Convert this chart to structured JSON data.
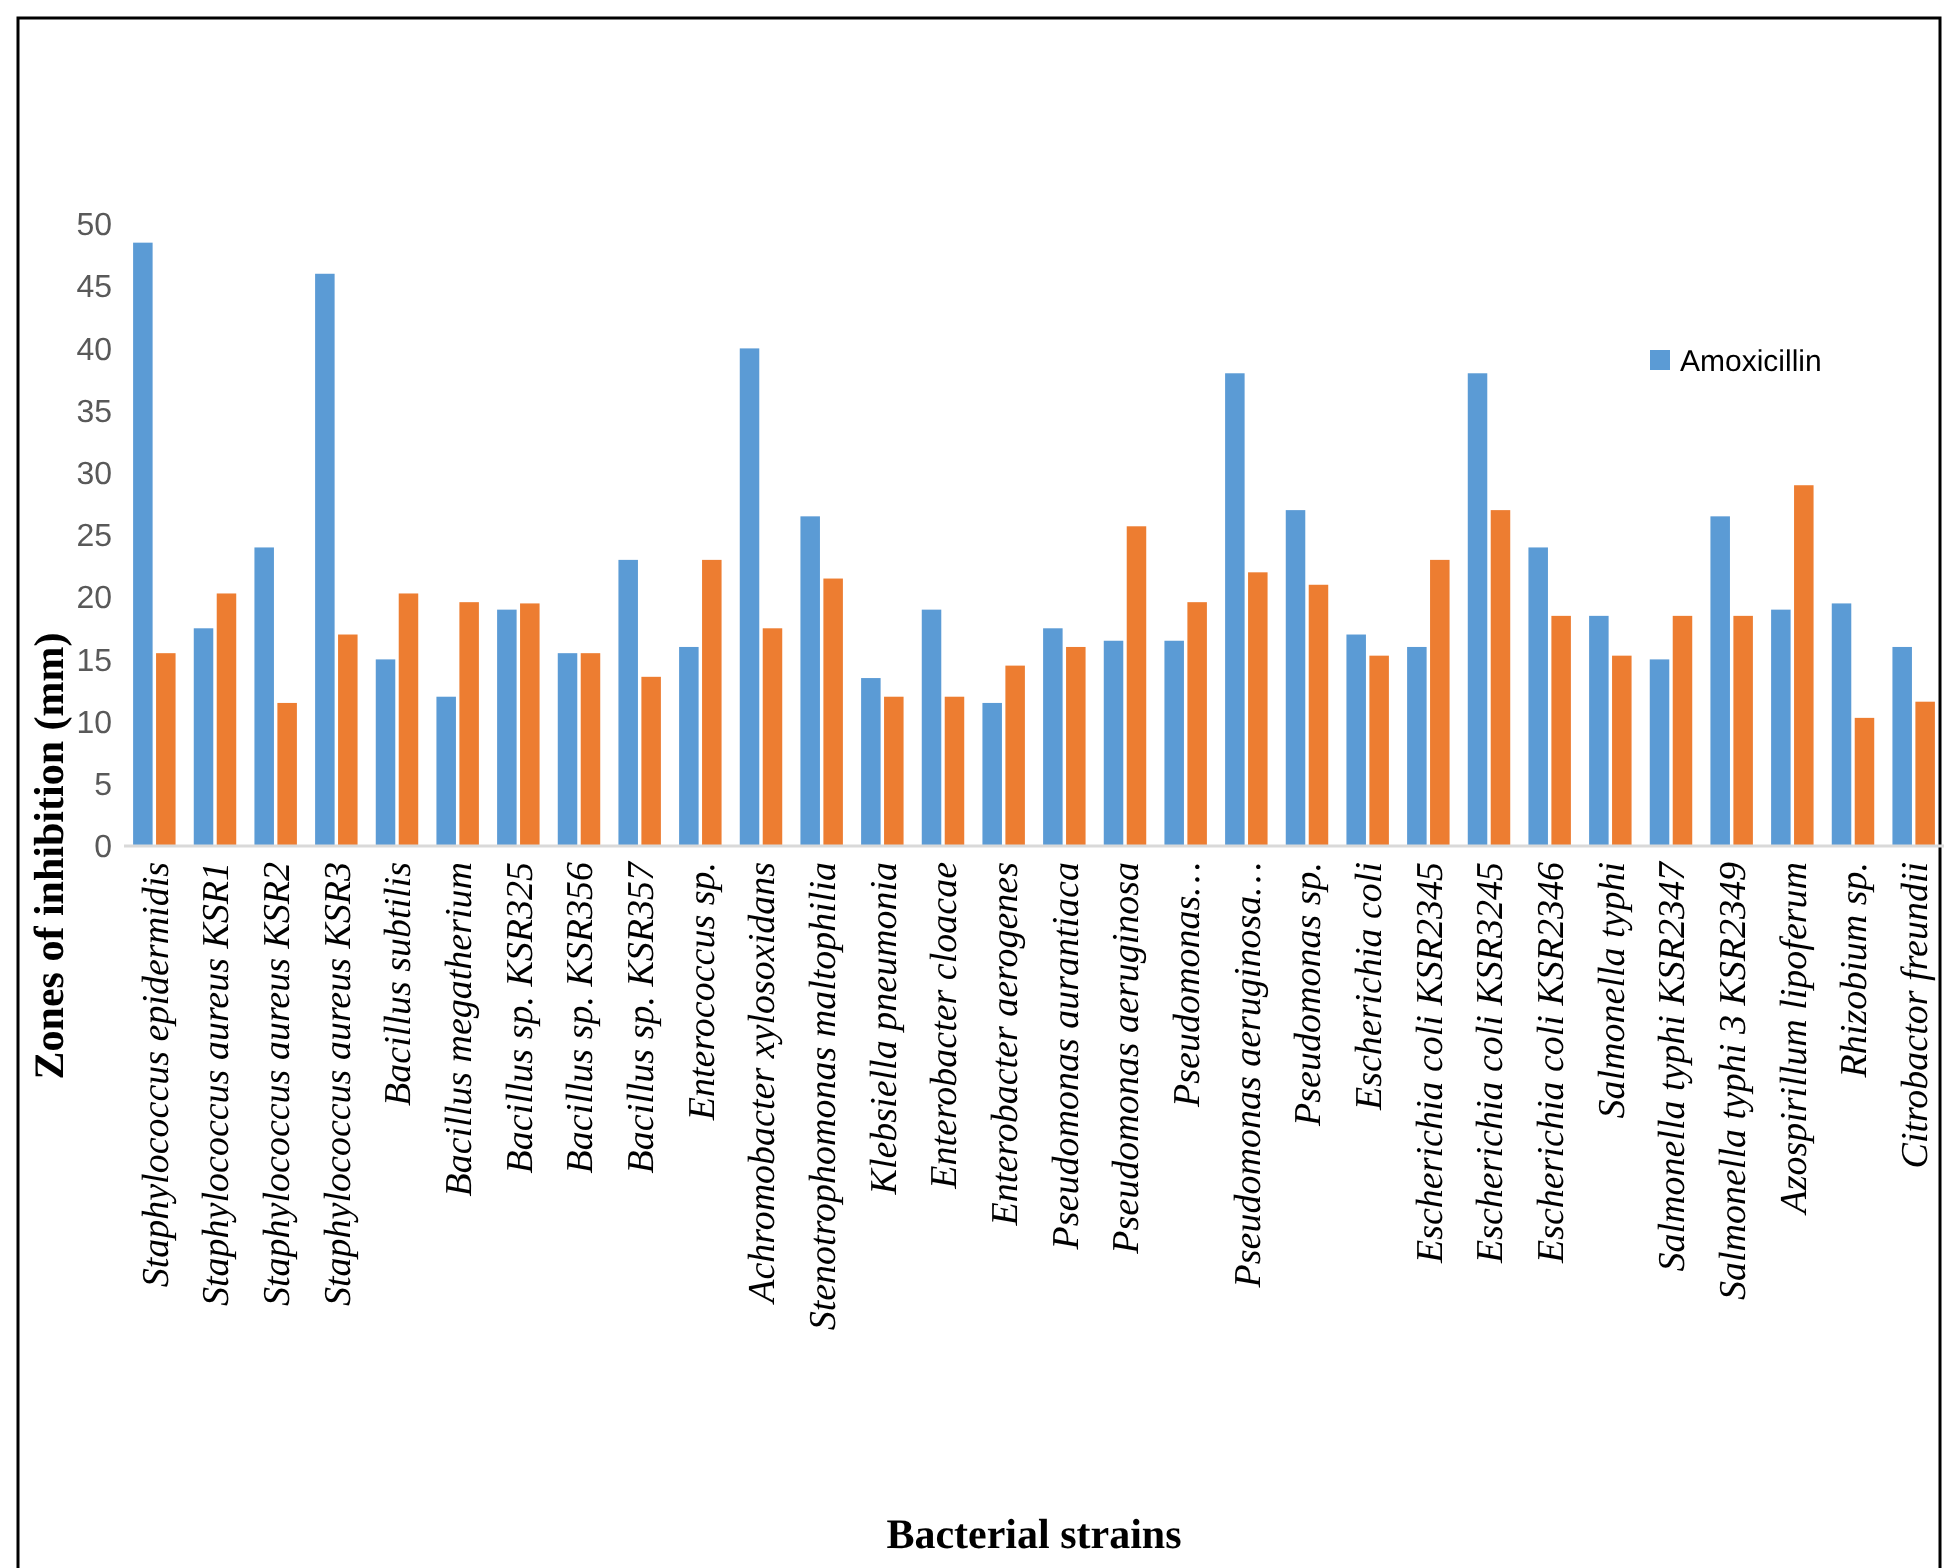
{
  "chart_data": {
    "type": "bar",
    "xlabel": "Bacterial strains",
    "ylabel": "Zones of inhibition (mm)",
    "categories": [
      "Staphylococcus epidermidis",
      "Staphylococcus aureus KSR1",
      "Staphylococcus aureus KSR2",
      "Staphylococcus aureus KSR3",
      "Bacillus subtilis",
      "Bacillus megatherium",
      "Bacillus sp. KSR325",
      "Bacillus sp. KSR356",
      "Bacillus sp. KSR357",
      "Enterococcus sp.",
      "Achromobacter xylosoxidans",
      "Stenotrophomonas maltophilia",
      "Klebsiella pneumonia",
      "Enterobacter cloacae",
      "Enterobacter aerogenes",
      "Pseudomonas aurantiaca",
      "Pseudomonas aeruginosa",
      "Pseudomonas…",
      "Pseudomonas aeruginosa…",
      "Pseudomonas sp.",
      "Escherichia coli",
      "Escherichia coli KSR2345",
      "Escherichia coli KSR3245",
      "Escherichia coli KSR2346",
      "Salmonella typhi",
      "Salmonella typhi KSR2347",
      "Salmonella typhi 3 KSR2349",
      "Azospirillum lipoferum",
      "Rhizobium sp.",
      "Citrobactor freundii"
    ],
    "series": [
      {
        "name": "Amoxicillin",
        "color": "#5b9bd5",
        "values": [
          48.5,
          17.5,
          24,
          46,
          15,
          12,
          19,
          15.5,
          23,
          16,
          40,
          26.5,
          13.5,
          19,
          11.5,
          17.5,
          16.5,
          16.5,
          38,
          27,
          17,
          16,
          38,
          24,
          18.5,
          15,
          26.5,
          19,
          19.5,
          16
        ]
      },
      {
        "color": "#ed7d31",
        "values": [
          15.5,
          20.3,
          11.5,
          17,
          20.3,
          19.6,
          19.5,
          15.5,
          13.6,
          23,
          17.5,
          21.5,
          12,
          12,
          14.5,
          16,
          25.7,
          19.6,
          22,
          21,
          15.3,
          23,
          27,
          18.5,
          15.3,
          18.5,
          18.5,
          29,
          10.3,
          11.6
        ]
      }
    ],
    "ylim": [
      0,
      50
    ],
    "yticks": [
      0,
      5,
      10,
      15,
      20,
      25,
      30,
      35,
      40,
      45,
      50
    ],
    "grid": false,
    "legend": "top right"
  }
}
